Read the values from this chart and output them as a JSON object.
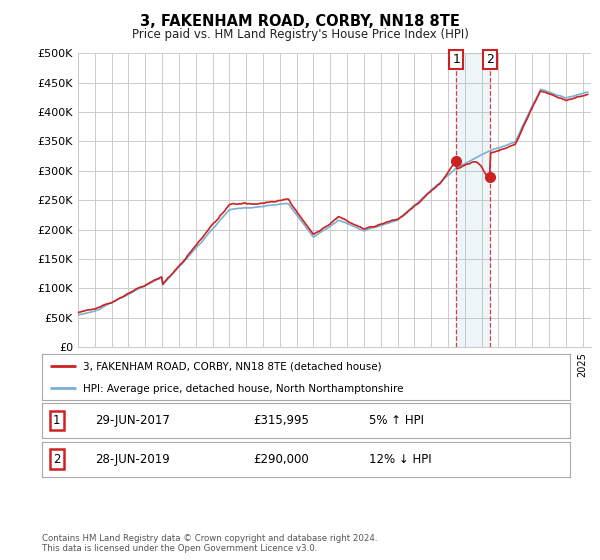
{
  "title": "3, FAKENHAM ROAD, CORBY, NN18 8TE",
  "subtitle": "Price paid vs. HM Land Registry's House Price Index (HPI)",
  "ylabel_ticks": [
    "£0",
    "£50K",
    "£100K",
    "£150K",
    "£200K",
    "£250K",
    "£300K",
    "£350K",
    "£400K",
    "£450K",
    "£500K"
  ],
  "ytick_values": [
    0,
    50000,
    100000,
    150000,
    200000,
    250000,
    300000,
    350000,
    400000,
    450000,
    500000
  ],
  "ylim": [
    0,
    500000
  ],
  "hpi_color": "#7ab0d4",
  "price_color": "#cc2222",
  "t1_year": 2017.49,
  "t1_price": 315995,
  "t2_year": 2019.49,
  "t2_price": 290000,
  "legend_label1": "3, FAKENHAM ROAD, CORBY, NN18 8TE (detached house)",
  "legend_label2": "HPI: Average price, detached house, North Northamptonshire",
  "table_row1": [
    "1",
    "29-JUN-2017",
    "£315,995",
    "5% ↑ HPI"
  ],
  "table_row2": [
    "2",
    "28-JUN-2019",
    "£290,000",
    "12% ↓ HPI"
  ],
  "footnote": "Contains HM Land Registry data © Crown copyright and database right 2024.\nThis data is licensed under the Open Government Licence v3.0.",
  "bg": "#ffffff",
  "grid_color": "#cccccc",
  "border_color": "#aaaaaa"
}
